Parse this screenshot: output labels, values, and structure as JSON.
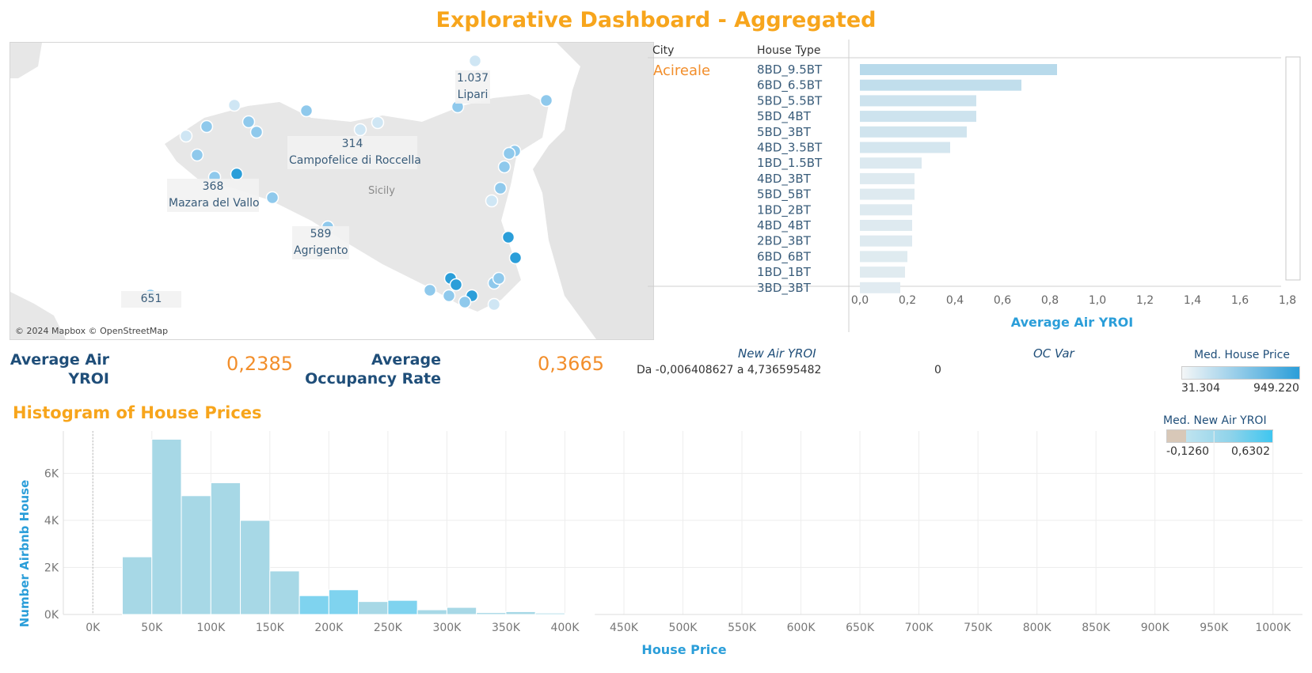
{
  "dashboard": {
    "title": "Explorative Dashboard - Aggregated"
  },
  "map": {
    "region_label": "Sicily",
    "credit": "© 2024 Mapbox © OpenStreetMap",
    "callouts": [
      {
        "value": "1.037",
        "city": "Lipari"
      },
      {
        "value": "314",
        "city": "Campofelice di Roccella"
      },
      {
        "value": "368",
        "city": "Mazara del Vallo"
      },
      {
        "value": "589",
        "city": "Agrigento"
      },
      {
        "value": "651",
        "city": ""
      }
    ],
    "colors": {
      "point_light": "#cfe6f4",
      "point_mid": "#8fc9ec",
      "point_dark": "#2b9ed9"
    }
  },
  "bar_panel": {
    "col_city": "City",
    "col_house_type": "House Type",
    "city": "Acireale",
    "axis_title": "Average Air YROI"
  },
  "kpis": {
    "avg_air_yroi_label_1": "Average Air",
    "avg_air_yroi_label_2": "YROI",
    "avg_air_yroi_value": "0,2385",
    "avg_occupancy_label_1": "Average",
    "avg_occupancy_label_2": "Occupancy Rate",
    "avg_occupancy_value": "0,3665"
  },
  "filters": {
    "new_air_yroi_title": "New Air YROI",
    "new_air_yroi_range": "Da -0,006408627 a 4,736595482",
    "oc_var_title": "OC Var",
    "oc_var_value": "0"
  },
  "legends": {
    "house_price": {
      "title": "Med. House Price",
      "min": "31.304",
      "max": "949.220"
    },
    "new_air_yroi": {
      "title": "Med. New Air YROI",
      "min": "-0,1260",
      "max": "0,6302"
    }
  },
  "histogram": {
    "title": "Histogram of House Prices"
  },
  "chart_data": [
    {
      "type": "bar",
      "orientation": "horizontal",
      "title": "",
      "xlabel": "Average Air YROI",
      "ylabel": "House Type",
      "xlim": [
        0,
        1.8
      ],
      "x_ticks": [
        "0,0",
        "0,2",
        "0,4",
        "0,6",
        "0,8",
        "1,0",
        "1,2",
        "1,4",
        "1,6",
        "1,8"
      ],
      "grid": false,
      "categories": [
        "8BD_9.5BT",
        "6BD_6.5BT",
        "5BD_5.5BT",
        "5BD_4BT",
        "5BD_3BT",
        "4BD_3.5BT",
        "1BD_1.5BT",
        "4BD_3BT",
        "5BD_5BT",
        "1BD_2BT",
        "4BD_4BT",
        "2BD_3BT",
        "6BD_6BT",
        "1BD_1BT",
        "3BD_3BT"
      ],
      "values": [
        0.83,
        0.68,
        0.49,
        0.49,
        0.45,
        0.38,
        0.26,
        0.23,
        0.23,
        0.22,
        0.22,
        0.22,
        0.2,
        0.19,
        0.17
      ]
    },
    {
      "type": "bar",
      "title": "Histogram of House Prices",
      "xlabel": "House Price",
      "ylabel": "Number Airbnb House",
      "xlim": [
        -25000,
        1025000
      ],
      "ylim": [
        0,
        7800
      ],
      "bin_width": 25000,
      "x_ticks": [
        "0K",
        "50K",
        "100K",
        "150K",
        "200K",
        "250K",
        "300K",
        "350K",
        "400K",
        "450K",
        "500K",
        "550K",
        "600K",
        "650K",
        "700K",
        "750K",
        "800K",
        "850K",
        "900K",
        "950K",
        "1000K"
      ],
      "y_ticks": [
        "0K",
        "2K",
        "4K",
        "6K"
      ],
      "grid": true,
      "bins_start": [
        25000,
        50000,
        75000,
        100000,
        125000,
        150000,
        175000,
        200000,
        225000,
        250000,
        275000,
        300000,
        325000,
        350000,
        375000,
        400000
      ],
      "values": [
        2450,
        7450,
        5050,
        5600,
        4000,
        1850,
        800,
        1050,
        550,
        600,
        200,
        300,
        80,
        120,
        60,
        30
      ]
    }
  ]
}
